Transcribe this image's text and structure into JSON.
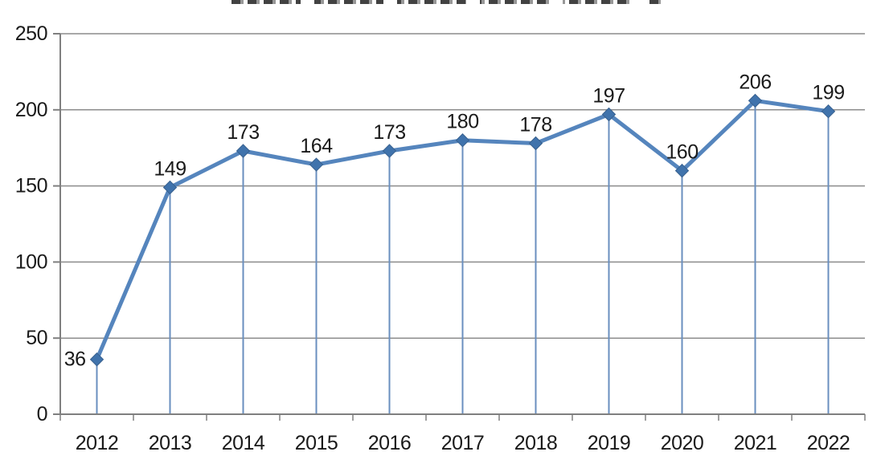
{
  "chart_data": {
    "type": "line",
    "title": "",
    "xlabel": "",
    "ylabel": "",
    "categories": [
      "2012",
      "2013",
      "2014",
      "2015",
      "2016",
      "2017",
      "2018",
      "2019",
      "2020",
      "2021",
      "2022"
    ],
    "values": [
      36,
      149,
      173,
      164,
      173,
      180,
      178,
      197,
      160,
      206,
      199
    ],
    "ylim": [
      0,
      250
    ],
    "ytick_step": 50,
    "yticks": [
      "0",
      "50",
      "100",
      "150",
      "200",
      "250"
    ],
    "grid": true,
    "legend": false,
    "marker": "diamond",
    "show_data_labels": true,
    "drop_lines": true,
    "colors": {
      "series_line": "#5585BD",
      "marker_fill": "#4073AC",
      "marker_border": "#38618F",
      "drop_line": "#6A8FBF",
      "gridline": "#8C8C8C",
      "axis_line": "#7F7F7F",
      "label_text": "#1A1A1A"
    }
  }
}
